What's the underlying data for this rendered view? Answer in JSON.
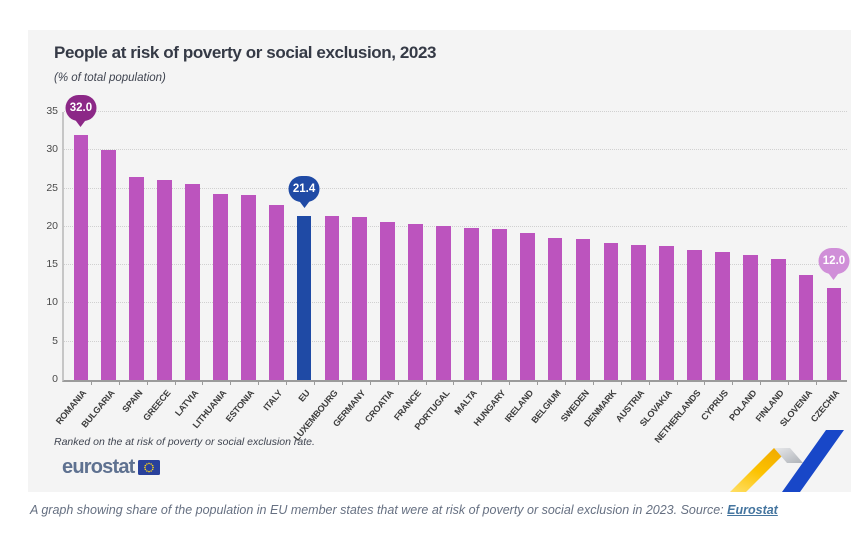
{
  "chart": {
    "title": "People at risk of poverty or social exclusion, 2023",
    "subtitle": "(% of total population)",
    "footnote": "Ranked on the at risk of poverty or social exclusion rate.",
    "brand": "eurostat"
  },
  "caption": {
    "text": "A graph showing share of the population in EU member states that were at risk of poverty or social exclusion in 2023. Source: ",
    "link_label": "Eurostat"
  },
  "chart_data": {
    "type": "bar",
    "title": "People at risk of poverty or social exclusion, 2023",
    "ylabel": "% of total population",
    "ylim": [
      0,
      35
    ],
    "y_ticks": [
      0,
      5,
      10,
      15,
      20,
      25,
      30,
      35
    ],
    "grid": "horizontal-dotted",
    "ranking_note": "Ranked on the at risk of poverty or social exclusion rate.",
    "categories": [
      "ROMANIA",
      "BULGARIA",
      "SPAIN",
      "GREECE",
      "LATVIA",
      "LITHUANIA",
      "ESTONIA",
      "ITALY",
      "EU",
      "LUXEMBOURG",
      "GERMANY",
      "CROATIA",
      "FRANCE",
      "PORTUGAL",
      "MALTA",
      "HUNGARY",
      "IRELAND",
      "BELGIUM",
      "SWEDEN",
      "DENMARK",
      "AUSTRIA",
      "SLOVAKIA",
      "NETHERLANDS",
      "CYPRUS",
      "POLAND",
      "FINLAND",
      "SLOVENIA",
      "CZECHIA"
    ],
    "values": [
      32.0,
      30.0,
      26.5,
      26.1,
      25.6,
      24.3,
      24.2,
      22.8,
      21.4,
      21.4,
      21.3,
      20.6,
      20.4,
      20.1,
      19.8,
      19.7,
      19.2,
      18.6,
      18.4,
      17.9,
      17.7,
      17.5,
      17.0,
      16.7,
      16.3,
      15.8,
      13.7,
      12.0
    ],
    "bar_color": "#bc54be",
    "highlight_category": "EU",
    "highlight_color": "#1f4aa5",
    "callouts": [
      {
        "category": "ROMANIA",
        "label": "32.0",
        "color": "#8c2887"
      },
      {
        "category": "EU",
        "label": "21.4",
        "color": "#1f4aa5"
      },
      {
        "category": "CZECHIA",
        "label": "12.0",
        "color": "#d08fd8"
      }
    ],
    "legend": "none"
  },
  "colors": {
    "card_background": "#f4f4f4",
    "ribbon_yellow": "#fcc200",
    "ribbon_gray": "#c3c6ca",
    "ribbon_blue": "#1847c8",
    "eu_flag_blue": "#29419b",
    "eu_flag_stars": "#ffd617"
  }
}
